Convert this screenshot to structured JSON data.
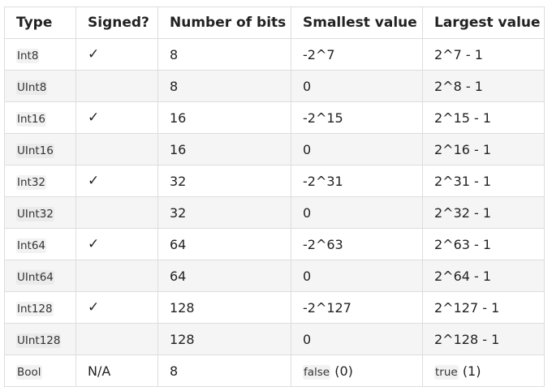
{
  "table": {
    "headers": [
      "Type",
      "Signed?",
      "Number of bits",
      "Smallest value",
      "Largest value"
    ],
    "rows": [
      {
        "type": "Int8",
        "signed": "✓",
        "bits": "8",
        "smallest": "-2^7",
        "largest": "2^7 - 1"
      },
      {
        "type": "UInt8",
        "signed": "",
        "bits": "8",
        "smallest": "0",
        "largest": "2^8 - 1"
      },
      {
        "type": "Int16",
        "signed": "✓",
        "bits": "16",
        "smallest": "-2^15",
        "largest": "2^15 - 1"
      },
      {
        "type": "UInt16",
        "signed": "",
        "bits": "16",
        "smallest": "0",
        "largest": "2^16 - 1"
      },
      {
        "type": "Int32",
        "signed": "✓",
        "bits": "32",
        "smallest": "-2^31",
        "largest": "2^31 - 1"
      },
      {
        "type": "UInt32",
        "signed": "",
        "bits": "32",
        "smallest": "0",
        "largest": "2^32 - 1"
      },
      {
        "type": "Int64",
        "signed": "✓",
        "bits": "64",
        "smallest": "-2^63",
        "largest": "2^63 - 1"
      },
      {
        "type": "UInt64",
        "signed": "",
        "bits": "64",
        "smallest": "0",
        "largest": "2^64 - 1"
      },
      {
        "type": "Int128",
        "signed": "✓",
        "bits": "128",
        "smallest": "-2^127",
        "largest": "2^127 - 1"
      },
      {
        "type": "UInt128",
        "signed": "",
        "bits": "128",
        "smallest": "0",
        "largest": "2^128 - 1"
      },
      {
        "type": "Bool",
        "signed": "N/A",
        "bits": "8",
        "smallest_code": "false",
        "smallest_rest": "(0)",
        "largest_code": "true",
        "largest_rest": "(1)"
      }
    ]
  }
}
